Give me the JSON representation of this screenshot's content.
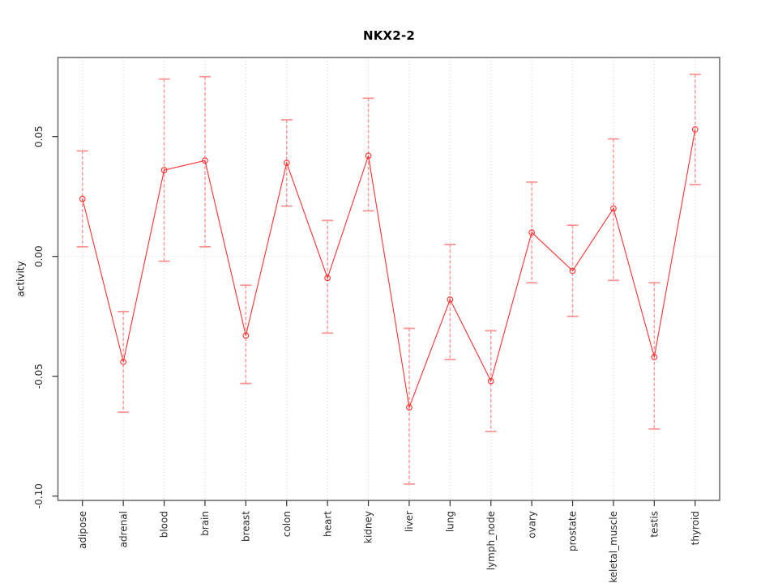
{
  "chart_data": {
    "type": "line",
    "title": "NKX2-2",
    "xlabel": "",
    "ylabel": "activity",
    "legend_position": "none",
    "grid": {
      "vertical_dotted_at_categories": true,
      "horizontal_dotted_at_zero": true
    },
    "categories": [
      "adipose",
      "adrenal",
      "blood",
      "brain",
      "breast",
      "colon",
      "heart",
      "kidney",
      "liver",
      "lung",
      "lymph_node",
      "ovary",
      "prostate",
      "skeletal_muscle",
      "testis",
      "thyroid"
    ],
    "series": [
      {
        "name": "NKX2-2 activity",
        "values": [
          0.024,
          -0.044,
          0.036,
          0.04,
          -0.033,
          0.039,
          -0.009,
          0.042,
          -0.063,
          -0.018,
          -0.052,
          0.01,
          -0.006,
          0.02,
          -0.042,
          0.053
        ],
        "lower": [
          0.004,
          -0.065,
          -0.002,
          0.004,
          -0.053,
          0.021,
          -0.032,
          0.019,
          -0.095,
          -0.043,
          -0.073,
          -0.011,
          -0.025,
          -0.01,
          -0.072,
          0.03
        ],
        "upper": [
          0.044,
          -0.023,
          0.074,
          0.075,
          -0.012,
          0.057,
          0.015,
          0.066,
          -0.03,
          0.005,
          -0.031,
          0.031,
          0.013,
          0.049,
          -0.011,
          0.076
        ]
      }
    ],
    "error_bars": true,
    "marker": "open-circle",
    "ytick_values": [
      -0.1,
      -0.05,
      0.0,
      0.05
    ],
    "ytick_labels": [
      "-0.10",
      "-0.05",
      "0.00",
      "0.05"
    ],
    "ylim": [
      -0.1018,
      0.083
    ],
    "colors": {
      "line": "#ff3030",
      "marker": "#ff3030",
      "error_bar": "#ff9090",
      "plot_border": "#6f6f6f",
      "gridline": "#d2d2d2",
      "tick": "#333333",
      "tick_label": "#2b2b2b"
    }
  }
}
